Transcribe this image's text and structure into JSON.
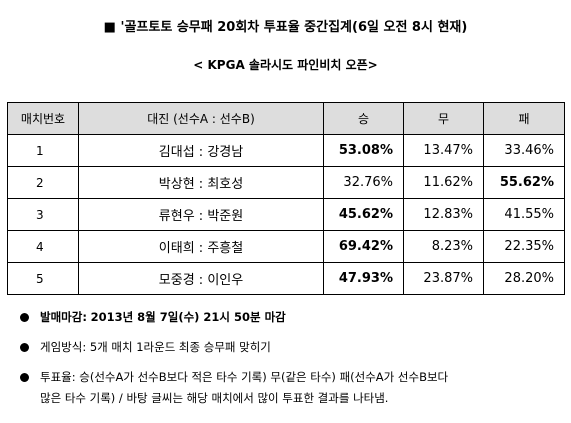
{
  "header": {
    "title": "■ '골프토토 승무패 20회차 투표율 중간집계(6일 오전 8시 현재)",
    "subtitle": "< KPGA 솔라시도 파인비치 오픈>"
  },
  "table": {
    "columns": [
      "매치번호",
      "대진 (선수A : 선수B)",
      "승",
      "무",
      "패"
    ],
    "rows": [
      {
        "num": "1",
        "match": "김대섭 : 강경남",
        "win": "53.08%",
        "draw": "13.47%",
        "loss": "33.46%",
        "bold": "win"
      },
      {
        "num": "2",
        "match": "박상현 : 최호성",
        "win": "32.76%",
        "draw": "11.62%",
        "loss": "55.62%",
        "bold": "loss"
      },
      {
        "num": "3",
        "match": "류현우 : 박준원",
        "win": "45.62%",
        "draw": "12.83%",
        "loss": "41.55%",
        "bold": "win"
      },
      {
        "num": "4",
        "match": "이태희 : 주흥철",
        "win": "69.42%",
        "draw": "8.23%",
        "loss": "22.35%",
        "bold": "win"
      },
      {
        "num": "5",
        "match": "모중경 : 이인우",
        "win": "47.93%",
        "draw": "23.87%",
        "loss": "28.20%",
        "bold": "win"
      }
    ]
  },
  "notes": {
    "deadline_label": "발매마감:",
    "deadline_value": "2013년 8월 7일(수) 21시 50분 마감",
    "method": "게임방식: 5개 매치 1라운드 최종 승무패 맞히기",
    "rate_line1": "투표율: 승(선수A가 선수B보다 적은 타수 기록) 무(같은 타수) 패(선수A가 선수B보다",
    "rate_line2": "많은 타수 기록) / 바탕 글씨는 해당 매치에서 많이 투표한 결과를 나타냄."
  }
}
